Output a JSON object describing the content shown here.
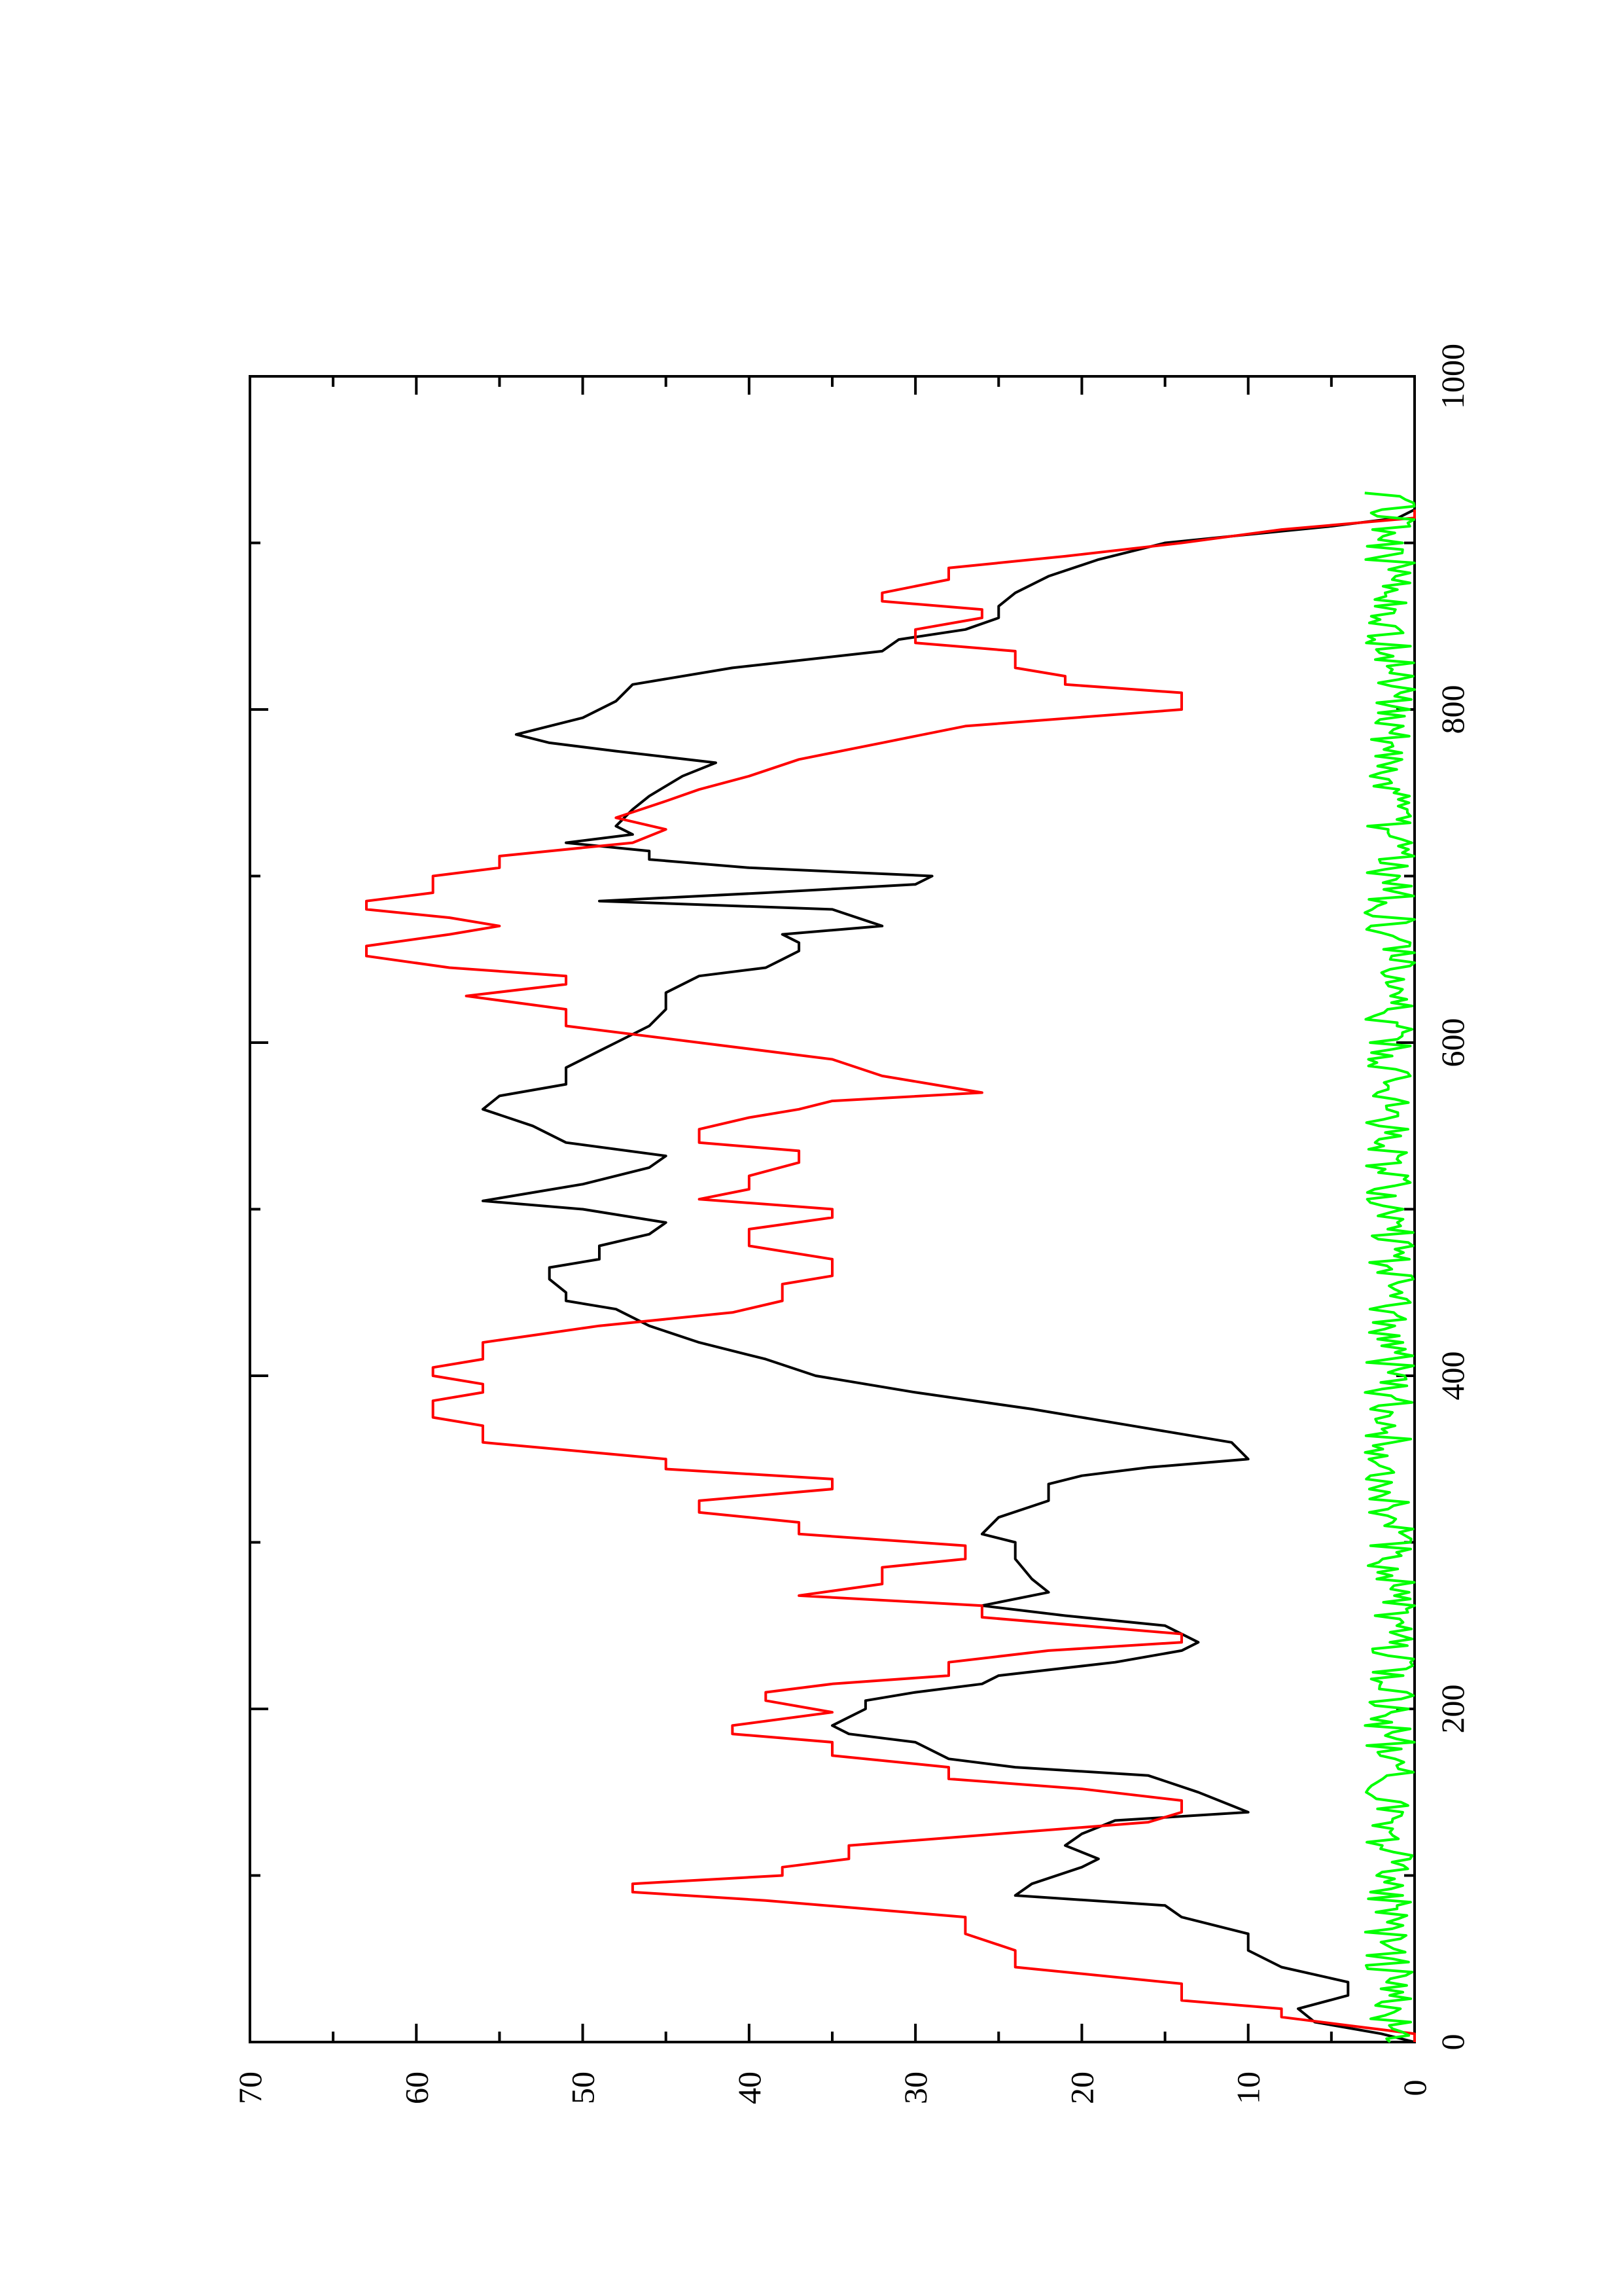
{
  "chart_data": {
    "type": "line",
    "orientation": "rotated-90-clockwise",
    "title": "",
    "xlabel": "",
    "ylabel": "",
    "xlim": [
      0,
      1000
    ],
    "ylim": [
      0,
      70
    ],
    "x_ticks": [
      0,
      200,
      400,
      600,
      800,
      1000
    ],
    "x_tick_labels": [
      "0",
      "200",
      "400",
      "600",
      "800",
      "1000"
    ],
    "x_minor_ticks": [
      100,
      300,
      500,
      700,
      900
    ],
    "y_ticks": [
      0,
      10,
      20,
      30,
      40,
      50,
      60,
      70
    ],
    "y_tick_labels": [
      "0",
      "10",
      "20",
      "30",
      "40",
      "50",
      "60",
      "70"
    ],
    "y_minor_ticks": [
      5,
      15,
      25,
      35,
      45,
      55,
      65
    ],
    "grid": false,
    "legend": "none",
    "series": [
      {
        "color": "#000000",
        "points": [
          [
            0,
            0
          ],
          [
            5,
            2
          ],
          [
            12,
            6
          ],
          [
            20,
            7
          ],
          [
            28,
            4
          ],
          [
            36,
            4
          ],
          [
            45,
            8
          ],
          [
            55,
            10
          ],
          [
            65,
            10
          ],
          [
            75,
            14
          ],
          [
            82,
            15
          ],
          [
            88,
            24
          ],
          [
            95,
            23
          ],
          [
            105,
            20
          ],
          [
            110,
            19
          ],
          [
            118,
            21
          ],
          [
            125,
            20
          ],
          [
            133,
            18
          ],
          [
            138,
            10
          ],
          [
            142,
            11
          ],
          [
            150,
            13
          ],
          [
            160,
            16
          ],
          [
            165,
            24
          ],
          [
            170,
            28
          ],
          [
            180,
            30
          ],
          [
            185,
            34
          ],
          [
            190,
            35
          ],
          [
            195,
            34
          ],
          [
            200,
            33
          ],
          [
            205,
            33
          ],
          [
            210,
            30
          ],
          [
            215,
            26
          ],
          [
            220,
            25
          ],
          [
            228,
            18
          ],
          [
            235,
            14
          ],
          [
            240,
            13
          ],
          [
            250,
            15
          ],
          [
            256,
            21
          ],
          [
            262,
            26
          ],
          [
            270,
            22
          ],
          [
            278,
            23
          ],
          [
            290,
            24
          ],
          [
            300,
            24
          ],
          [
            305,
            26
          ],
          [
            315,
            25
          ],
          [
            325,
            22
          ],
          [
            335,
            22
          ],
          [
            340,
            20
          ],
          [
            345,
            16
          ],
          [
            350,
            10
          ],
          [
            360,
            11
          ],
          [
            370,
            17
          ],
          [
            380,
            23
          ],
          [
            390,
            30
          ],
          [
            400,
            36
          ],
          [
            410,
            39
          ],
          [
            420,
            43
          ],
          [
            430,
            46
          ],
          [
            440,
            48
          ],
          [
            445,
            51
          ],
          [
            450,
            51
          ],
          [
            458,
            52
          ],
          [
            465,
            52
          ],
          [
            470,
            49
          ],
          [
            478,
            49
          ],
          [
            485,
            46
          ],
          [
            492,
            45
          ],
          [
            500,
            50
          ],
          [
            505,
            56
          ],
          [
            515,
            50
          ],
          [
            525,
            46
          ],
          [
            532,
            45
          ],
          [
            540,
            51
          ],
          [
            550,
            53
          ],
          [
            560,
            56
          ],
          [
            568,
            55
          ],
          [
            575,
            51
          ],
          [
            585,
            51
          ],
          [
            595,
            49
          ],
          [
            600,
            48
          ],
          [
            610,
            46
          ],
          [
            620,
            45
          ],
          [
            630,
            45
          ],
          [
            640,
            43
          ],
          [
            645,
            39
          ],
          [
            650,
            38
          ],
          [
            655,
            37
          ],
          [
            660,
            37
          ],
          [
            665,
            38
          ],
          [
            670,
            32
          ],
          [
            680,
            35
          ],
          [
            685,
            49
          ],
          [
            690,
            39
          ],
          [
            695,
            30
          ],
          [
            700,
            29
          ],
          [
            705,
            40
          ],
          [
            710,
            46
          ],
          [
            715,
            46
          ],
          [
            720,
            51
          ],
          [
            725,
            47
          ],
          [
            730,
            48
          ],
          [
            740,
            47
          ],
          [
            748,
            46
          ],
          [
            760,
            44
          ],
          [
            768,
            42
          ],
          [
            775,
            48
          ],
          [
            780,
            52
          ],
          [
            785,
            54
          ],
          [
            795,
            50
          ],
          [
            805,
            48
          ],
          [
            815,
            47
          ],
          [
            825,
            41
          ],
          [
            835,
            32
          ],
          [
            842,
            31
          ],
          [
            848,
            27
          ],
          [
            855,
            25
          ],
          [
            862,
            25
          ],
          [
            870,
            24
          ],
          [
            880,
            22
          ],
          [
            890,
            19
          ],
          [
            900,
            15
          ],
          [
            910,
            5
          ],
          [
            915,
            1
          ],
          [
            920,
            0
          ]
        ]
      },
      {
        "color": "#ff0000",
        "points": [
          [
            0,
            0
          ],
          [
            5,
            0
          ],
          [
            10,
            4
          ],
          [
            15,
            8
          ],
          [
            20,
            8
          ],
          [
            25,
            14
          ],
          [
            35,
            14
          ],
          [
            45,
            24
          ],
          [
            55,
            24
          ],
          [
            65,
            27
          ],
          [
            75,
            27
          ],
          [
            85,
            39
          ],
          [
            90,
            47
          ],
          [
            95,
            47
          ],
          [
            100,
            38
          ],
          [
            105,
            38
          ],
          [
            110,
            34
          ],
          [
            118,
            34
          ],
          [
            125,
            25
          ],
          [
            132,
            16
          ],
          [
            138,
            14
          ],
          [
            145,
            14
          ],
          [
            152,
            20
          ],
          [
            158,
            28
          ],
          [
            165,
            28
          ],
          [
            172,
            35
          ],
          [
            180,
            35
          ],
          [
            185,
            41
          ],
          [
            190,
            41
          ],
          [
            198,
            35
          ],
          [
            205,
            39
          ],
          [
            210,
            39
          ],
          [
            215,
            35
          ],
          [
            220,
            28
          ],
          [
            228,
            28
          ],
          [
            235,
            22
          ],
          [
            240,
            14
          ],
          [
            245,
            14
          ],
          [
            250,
            20
          ],
          [
            255,
            26
          ],
          [
            262,
            26
          ],
          [
            268,
            37
          ],
          [
            275,
            32
          ],
          [
            285,
            32
          ],
          [
            290,
            27
          ],
          [
            298,
            27
          ],
          [
            305,
            37
          ],
          [
            312,
            37
          ],
          [
            318,
            43
          ],
          [
            325,
            43
          ],
          [
            332,
            35
          ],
          [
            338,
            35
          ],
          [
            344,
            45
          ],
          [
            350,
            45
          ],
          [
            360,
            56
          ],
          [
            370,
            56
          ],
          [
            375,
            59
          ],
          [
            385,
            59
          ],
          [
            390,
            56
          ],
          [
            395,
            56
          ],
          [
            400,
            59
          ],
          [
            405,
            59
          ],
          [
            410,
            56
          ],
          [
            420,
            56
          ],
          [
            430,
            49
          ],
          [
            438,
            41
          ],
          [
            445,
            38
          ],
          [
            450,
            38
          ],
          [
            455,
            38
          ],
          [
            460,
            35
          ],
          [
            470,
            35
          ],
          [
            478,
            40
          ],
          [
            488,
            40
          ],
          [
            495,
            35
          ],
          [
            500,
            35
          ],
          [
            506,
            43
          ],
          [
            512,
            40
          ],
          [
            520,
            40
          ],
          [
            528,
            37
          ],
          [
            535,
            37
          ],
          [
            540,
            43
          ],
          [
            548,
            43
          ],
          [
            555,
            40
          ],
          [
            560,
            37
          ],
          [
            565,
            35
          ],
          [
            570,
            26
          ],
          [
            575,
            29
          ],
          [
            580,
            32
          ],
          [
            590,
            35
          ],
          [
            600,
            43
          ],
          [
            610,
            51
          ],
          [
            620,
            51
          ],
          [
            628,
            57
          ],
          [
            635,
            51
          ],
          [
            640,
            51
          ],
          [
            645,
            58
          ],
          [
            652,
            63
          ],
          [
            658,
            63
          ],
          [
            665,
            58
          ],
          [
            670,
            55
          ],
          [
            675,
            58
          ],
          [
            680,
            63
          ],
          [
            685,
            63
          ],
          [
            690,
            59
          ],
          [
            700,
            59
          ],
          [
            705,
            55
          ],
          [
            712,
            55
          ],
          [
            720,
            47
          ],
          [
            728,
            45
          ],
          [
            735,
            48
          ],
          [
            745,
            45
          ],
          [
            752,
            43
          ],
          [
            760,
            40
          ],
          [
            770,
            37
          ],
          [
            780,
            32
          ],
          [
            790,
            27
          ],
          [
            800,
            14
          ],
          [
            810,
            14
          ],
          [
            815,
            21
          ],
          [
            820,
            21
          ],
          [
            825,
            24
          ],
          [
            835,
            24
          ],
          [
            840,
            30
          ],
          [
            848,
            30
          ],
          [
            855,
            26
          ],
          [
            860,
            26
          ],
          [
            865,
            32
          ],
          [
            870,
            32
          ],
          [
            878,
            28
          ],
          [
            885,
            28
          ],
          [
            892,
            21
          ],
          [
            900,
            14
          ],
          [
            908,
            8
          ],
          [
            915,
            0
          ],
          [
            920,
            0
          ]
        ]
      },
      {
        "color": "#00ff00",
        "noise": "high-frequency small fluctuation near zero (0 to ~3)",
        "range": [
          0,
          3
        ],
        "x_extent": [
          0,
          930
        ]
      }
    ]
  }
}
